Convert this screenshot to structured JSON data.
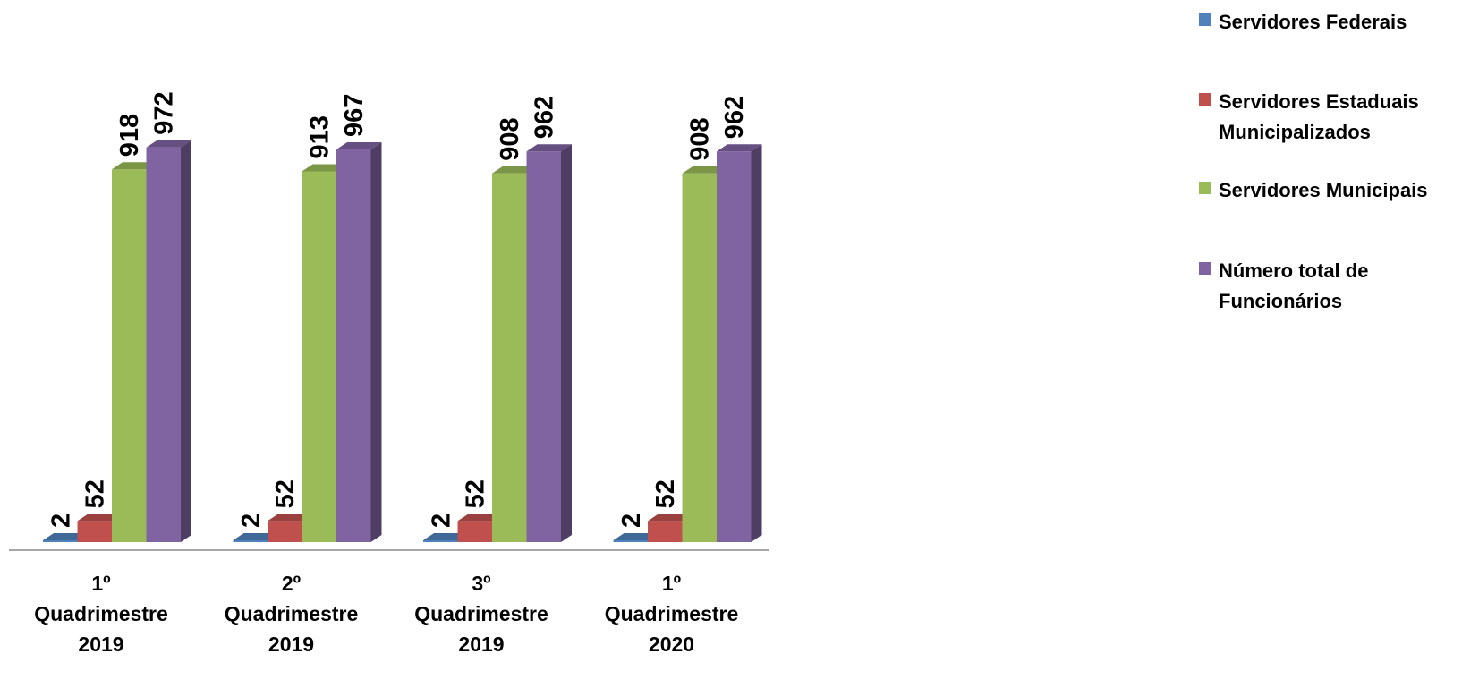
{
  "chart_data": {
    "type": "bar",
    "categories": [
      "1º\nQuadrimestre\n2019",
      "2º\nQuadrimestre\n2019",
      "3º\nQuadrimestre\n2019",
      "1º\nQuadrimestre\n2020"
    ],
    "series": [
      {
        "name": "Servidores Federais",
        "color": "#4F81BD",
        "values": [
          2,
          2,
          2,
          2
        ]
      },
      {
        "name": "Servidores Estaduais\nMunicipalizados",
        "color": "#C0504D",
        "values": [
          52,
          52,
          52,
          52
        ]
      },
      {
        "name": "Servidores Municipais",
        "color": "#9BBB59",
        "values": [
          918,
          913,
          908,
          908
        ]
      },
      {
        "name": "Número total de\nFuncionários",
        "color": "#8064A2",
        "values": [
          972,
          967,
          962,
          962
        ]
      }
    ],
    "title": "",
    "xlabel": "",
    "ylabel": "",
    "ylim": [
      0,
      1000
    ],
    "grid": false,
    "legend": "right",
    "data_labels": true
  }
}
